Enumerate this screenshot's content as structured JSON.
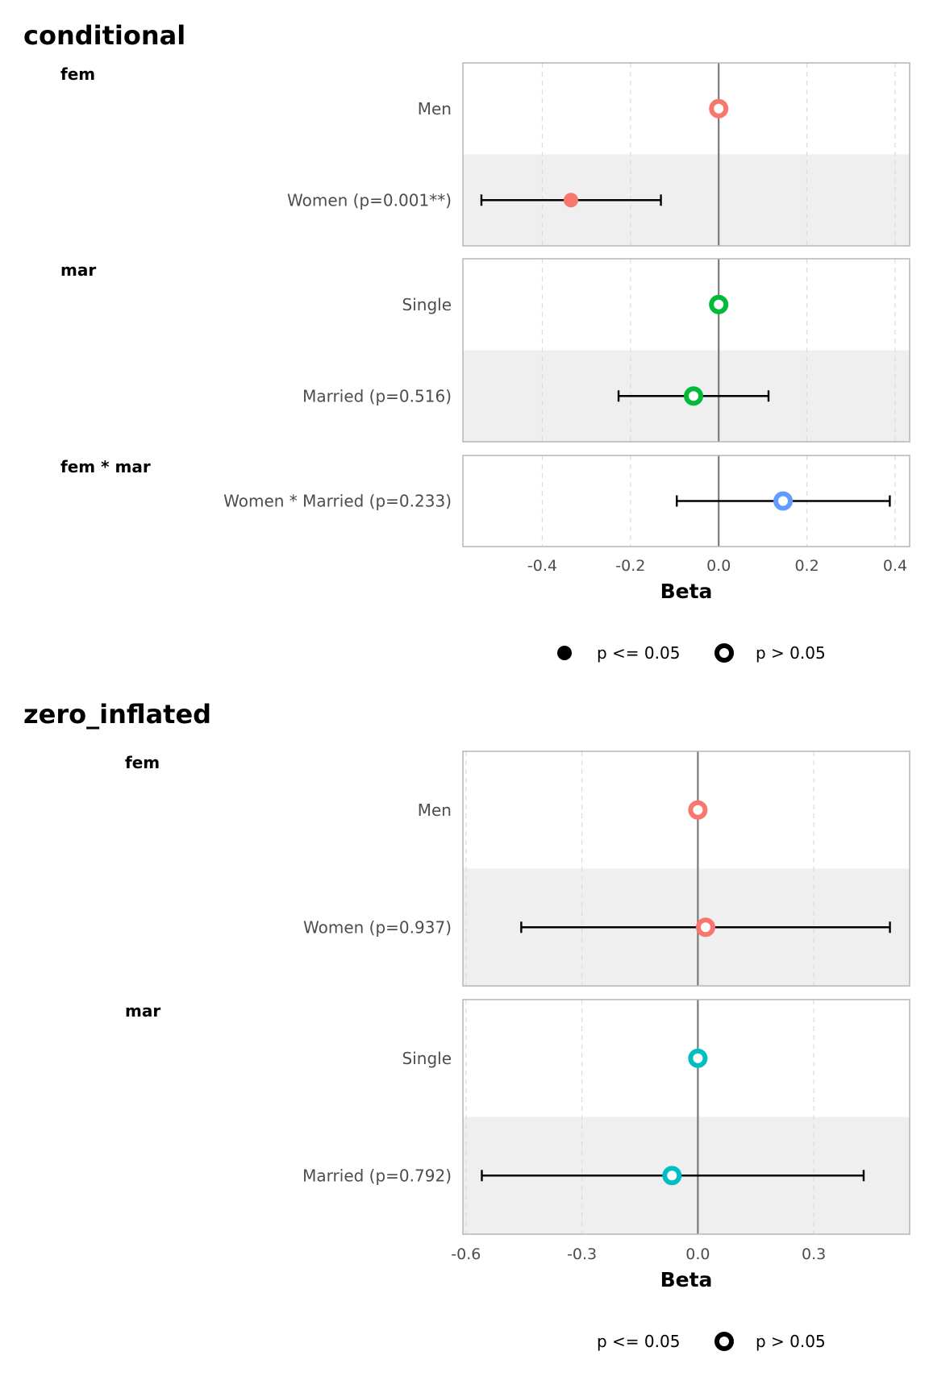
{
  "chart_data": [
    {
      "type": "forest",
      "title": "conditional",
      "xlabel": "Beta",
      "xlim": [
        -0.58,
        0.433
      ],
      "xticks": [
        -0.4,
        -0.2,
        0.0,
        0.2,
        0.4
      ],
      "xtick_labels": [
        "-0.4",
        "-0.2",
        "0.0",
        "0.2",
        "0.4"
      ],
      "reference_line": 0,
      "grid": true,
      "legend_position": "bottom",
      "legend": [
        {
          "label": "p <= 0.05",
          "symbol": "filled"
        },
        {
          "label": "p > 0.05",
          "symbol": "open"
        }
      ],
      "groups": [
        {
          "name": "fem",
          "terms": [
            {
              "label": "Men",
              "estimate": 0,
              "ci_low": null,
              "ci_high": null,
              "significant": false,
              "color": "#F8766D"
            },
            {
              "label": "Women (p=0.001**)",
              "estimate": -0.335,
              "ci_low": -0.538,
              "ci_high": -0.131,
              "significant": true,
              "color": "#F8766D"
            }
          ]
        },
        {
          "name": "mar",
          "terms": [
            {
              "label": "Single",
              "estimate": 0,
              "ci_low": null,
              "ci_high": null,
              "significant": false,
              "color": "#00BA38"
            },
            {
              "label": "Married (p=0.516)",
              "estimate": -0.057,
              "ci_low": -0.227,
              "ci_high": 0.113,
              "significant": false,
              "color": "#00BA38"
            }
          ]
        },
        {
          "name": "fem * mar",
          "terms": [
            {
              "label": "Women * Married (p=0.233)",
              "estimate": 0.146,
              "ci_low": -0.095,
              "ci_high": 0.388,
              "significant": false,
              "color": "#619CFF"
            }
          ]
        }
      ]
    },
    {
      "type": "forest",
      "title": "zero_inflated",
      "xlabel": "Beta",
      "xlim": [
        -0.608,
        0.548
      ],
      "xticks": [
        -0.6,
        -0.3,
        0.0,
        0.3
      ],
      "xtick_labels": [
        "-0.6",
        "-0.3",
        "0.0",
        "0.3"
      ],
      "reference_line": 0,
      "grid": true,
      "legend_position": "bottom",
      "legend": [
        {
          "label": "p <= 0.05",
          "symbol": "none"
        },
        {
          "label": "p > 0.05",
          "symbol": "open"
        }
      ],
      "groups": [
        {
          "name": "fem",
          "terms": [
            {
              "label": "Men",
              "estimate": 0,
              "ci_low": null,
              "ci_high": null,
              "significant": false,
              "color": "#F8766D"
            },
            {
              "label": "Women (p=0.937)",
              "estimate": 0.02,
              "ci_low": -0.457,
              "ci_high": 0.497,
              "significant": false,
              "color": "#F8766D"
            }
          ]
        },
        {
          "name": "mar",
          "terms": [
            {
              "label": "Single",
              "estimate": 0,
              "ci_low": null,
              "ci_high": null,
              "significant": false,
              "color": "#00BFC4"
            },
            {
              "label": "Married (p=0.792)",
              "estimate": -0.067,
              "ci_low": -0.559,
              "ci_high": 0.429,
              "significant": false,
              "color": "#00BFC4"
            }
          ]
        }
      ]
    }
  ]
}
